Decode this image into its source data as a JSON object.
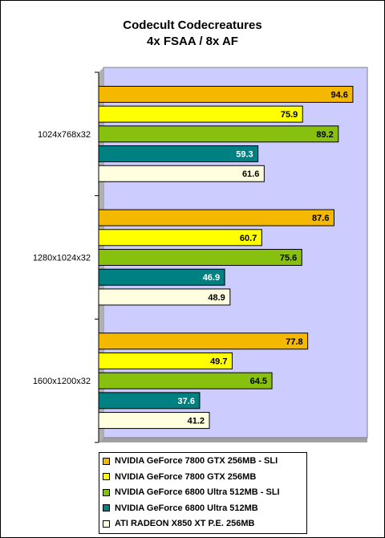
{
  "chart_data": {
    "type": "bar",
    "orientation": "horizontal",
    "title": "Codecult Codecreatures",
    "subtitle": "4x FSAA / 8x AF",
    "categories": [
      "1024x768x32",
      "1280x1024x32",
      "1600x1200x32"
    ],
    "xlim": [
      0,
      100
    ],
    "grid": false,
    "legend_placement": "bottom",
    "plot_background": "#ccccff",
    "series": [
      {
        "name": "NVIDIA GeForce 7800 GTX 256MB - SLI",
        "color": "#f5b800",
        "label_color": "#000000",
        "values": [
          94.6,
          87.6,
          77.8
        ]
      },
      {
        "name": "NVIDIA GeForce 7800 GTX 256MB",
        "color": "#ffff00",
        "label_color": "#000000",
        "values": [
          75.9,
          60.7,
          49.7
        ]
      },
      {
        "name": "NVIDIA GeForce 6800 Ultra 512MB - SLI",
        "color": "#88c010",
        "label_color": "#000000",
        "values": [
          89.2,
          75.6,
          64.5
        ]
      },
      {
        "name": "NVIDIA GeForce 6800 Ultra 512MB",
        "color": "#008080",
        "label_color": "#ffffff",
        "values": [
          59.3,
          46.9,
          37.6
        ]
      },
      {
        "name": "ATI RADEON X850 XT P.E. 256MB",
        "color": "#ffffe0",
        "label_color": "#000000",
        "values": [
          61.6,
          48.9,
          41.2
        ]
      }
    ]
  }
}
